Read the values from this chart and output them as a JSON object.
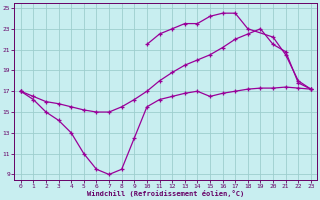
{
  "background_color": "#c8eef0",
  "grid_color": "#9ecece",
  "line_color": "#990099",
  "xlabel": "Windchill (Refroidissement éolien,°C)",
  "xlim": [
    -0.5,
    23.5
  ],
  "ylim": [
    8.5,
    25.5
  ],
  "yticks": [
    9,
    11,
    13,
    15,
    17,
    19,
    21,
    23,
    25
  ],
  "xticks": [
    0,
    1,
    2,
    3,
    4,
    5,
    6,
    7,
    8,
    9,
    10,
    11,
    12,
    13,
    14,
    15,
    16,
    17,
    18,
    19,
    20,
    21,
    22,
    23
  ],
  "lineA_x": [
    0,
    1,
    2,
    3,
    4,
    5,
    6,
    7,
    8,
    9,
    10,
    11,
    12,
    13,
    14,
    15,
    16,
    17,
    18,
    19,
    20,
    21,
    22,
    23
  ],
  "lineA_y": [
    17.0,
    16.2,
    15.0,
    14.2,
    13.0,
    11.0,
    9.5,
    9.0,
    9.5,
    12.5,
    15.5,
    16.2,
    16.5,
    16.8,
    17.0,
    16.5,
    16.8,
    17.0,
    17.2,
    17.3,
    17.3,
    17.4,
    17.3,
    17.2
  ],
  "lineB_x": [
    0,
    1,
    2,
    3,
    4,
    5,
    6,
    7,
    8,
    9,
    10,
    11,
    12,
    13,
    14,
    15,
    16,
    17,
    18,
    19,
    20,
    21,
    22,
    23
  ],
  "lineB_y": [
    17.0,
    16.5,
    16.0,
    15.8,
    15.5,
    15.2,
    15.0,
    15.0,
    15.5,
    16.2,
    17.0,
    18.0,
    18.8,
    19.5,
    20.0,
    20.5,
    21.2,
    22.0,
    22.5,
    23.0,
    21.5,
    20.8,
    17.8,
    17.2
  ],
  "lineC_x": [
    0,
    10,
    11,
    12,
    13,
    14,
    15,
    16,
    17,
    18,
    20,
    21,
    22,
    23
  ],
  "lineC_y": [
    17.0,
    21.5,
    22.5,
    23.0,
    23.5,
    23.5,
    24.2,
    24.5,
    24.5,
    23.0,
    22.2,
    20.5,
    18.0,
    17.2
  ]
}
